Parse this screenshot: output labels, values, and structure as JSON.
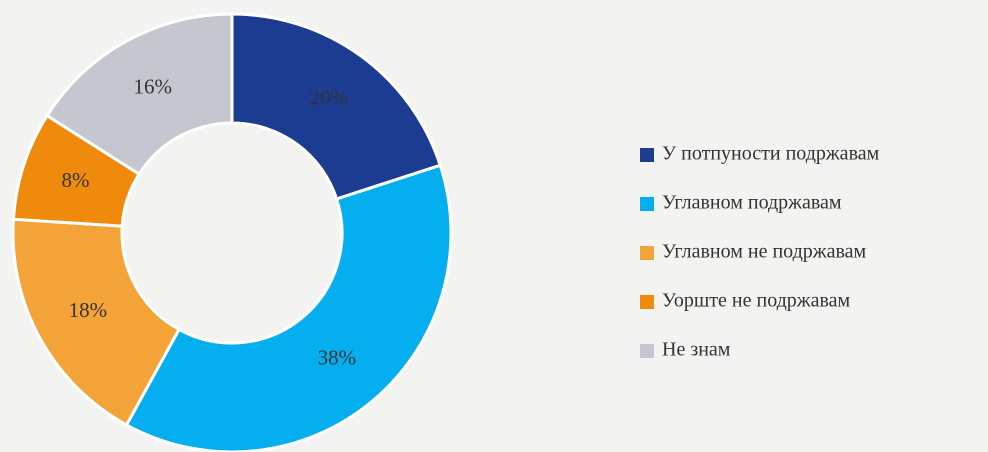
{
  "chart_data": {
    "type": "donut",
    "categories": [
      "У потпуности подржавам",
      "Углавном подржавам",
      "Углавном не подржавам",
      "Уорште не подржавам",
      "Не знам"
    ],
    "values": [
      20,
      38,
      18,
      8,
      16
    ],
    "value_labels": [
      "20%",
      "38%",
      "18%",
      "8%",
      "16%"
    ],
    "colors": [
      "#1b3c91",
      "#04aeef",
      "#f4a338",
      "#ef8a0c",
      "#c4c7cf"
    ],
    "legend": "right"
  }
}
